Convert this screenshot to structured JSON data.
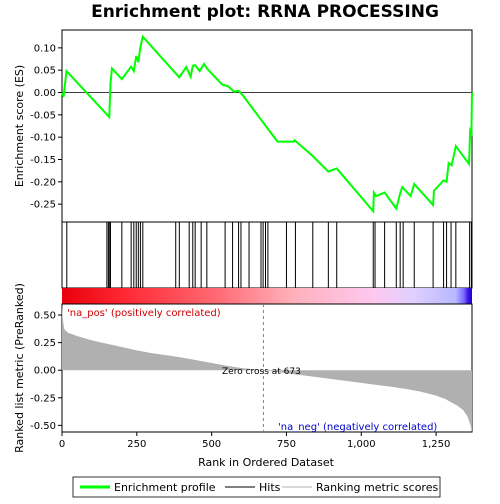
{
  "chart_data": {
    "type": "line",
    "title": "Enrichment plot: RRNA PROCESSING",
    "top_panel": {
      "ylabel": "Enrichment score (ES)",
      "ylim": [
        -0.29,
        0.14
      ],
      "yticks": [
        0.1,
        0.05,
        0.0,
        -0.05,
        -0.1,
        -0.15,
        -0.2,
        -0.25
      ],
      "ytick_labels": [
        "0.10",
        "0.05",
        "0.00",
        "-0.05",
        "-0.10",
        "-0.15",
        "-0.20",
        "-0.25"
      ],
      "series": [
        {
          "name": "Enrichment profile",
          "color": "#00ff00",
          "x": [
            0,
            5,
            15,
            158,
            162,
            167,
            200,
            231,
            240,
            248,
            255,
            262,
            270,
            392,
            415,
            430,
            437,
            445,
            460,
            475,
            484,
            535,
            555,
            575,
            590,
            605,
            720,
            774,
            777,
            834,
            890,
            918,
            1040,
            1042,
            1050,
            1078,
            1117,
            1130,
            1137,
            1165,
            1177,
            1240,
            1243,
            1275,
            1285,
            1292,
            1302,
            1316,
            1360,
            1364,
            1368,
            1370
          ],
          "y": [
            0.0,
            -0.01,
            0.048,
            -0.055,
            0.02,
            0.054,
            0.03,
            0.058,
            0.048,
            0.082,
            0.068,
            0.102,
            0.125,
            0.034,
            0.057,
            0.035,
            0.06,
            0.061,
            0.048,
            0.064,
            0.054,
            0.018,
            0.014,
            0.002,
            0.004,
            -0.007,
            -0.11,
            -0.11,
            -0.107,
            -0.14,
            -0.177,
            -0.17,
            -0.266,
            -0.224,
            -0.232,
            -0.224,
            -0.26,
            -0.226,
            -0.212,
            -0.232,
            -0.205,
            -0.252,
            -0.22,
            -0.197,
            -0.2,
            -0.158,
            -0.163,
            -0.12,
            -0.16,
            -0.085,
            -0.09,
            0.0
          ]
        }
      ]
    },
    "hits": {
      "name": "Hits",
      "positions": [
        16,
        150,
        155,
        158,
        162,
        200,
        231,
        240,
        248,
        255,
        262,
        270,
        380,
        392,
        425,
        437,
        445,
        465,
        484,
        545,
        570,
        590,
        598,
        625,
        665,
        672,
        680,
        688,
        750,
        780,
        838,
        890,
        918,
        1040,
        1046,
        1078,
        1117,
        1130,
        1140,
        1177,
        1240,
        1275,
        1285,
        1300,
        1316,
        1362,
        1368
      ]
    },
    "colorbar": {
      "name": "ranking colour bar",
      "colors": [
        "#e8000b",
        "#ff2b36",
        "#ff6b75",
        "#ffb0ba",
        "#ffc8f0",
        "#ddd0ff",
        "#b8b8ff",
        "#7a6bff",
        "#3a18e8",
        "#2000c8"
      ],
      "stops": [
        0,
        0.16,
        0.38,
        0.56,
        0.76,
        0.86,
        0.96,
        0.98,
        0.99,
        1.0
      ]
    },
    "bottom_panel": {
      "ylabel": "Ranked list metric (PreRanked)",
      "xlabel": "Rank in Ordered Dataset",
      "ylim": [
        -0.56,
        0.6
      ],
      "yticks": [
        0.5,
        0.25,
        0.0,
        -0.25,
        -0.5
      ],
      "ytick_labels": [
        "0.50",
        "0.25",
        "0.00",
        "-0.25",
        "-0.50"
      ],
      "xlim": [
        0,
        1370
      ],
      "xticks": [
        0,
        250,
        500,
        750,
        1000,
        1250
      ],
      "xtick_labels": [
        "0",
        "250",
        "500",
        "750",
        "1,000",
        "1,250"
      ],
      "series": [
        {
          "name": "Ranking metric scores",
          "color": "#b0b0b0",
          "x": [
            0,
            3,
            8,
            20,
            50,
            100,
            150,
            200,
            250,
            300,
            350,
            400,
            450,
            500,
            550,
            600,
            650,
            673,
            700,
            800,
            900,
            1000,
            1100,
            1150,
            1200,
            1250,
            1280,
            1300,
            1320,
            1340,
            1355,
            1365,
            1370
          ],
          "y": [
            0.6,
            0.45,
            0.37,
            0.34,
            0.31,
            0.27,
            0.24,
            0.21,
            0.18,
            0.155,
            0.135,
            0.115,
            0.09,
            0.065,
            0.04,
            0.02,
            0.006,
            0.0,
            -0.01,
            -0.045,
            -0.08,
            -0.115,
            -0.15,
            -0.17,
            -0.195,
            -0.23,
            -0.26,
            -0.29,
            -0.32,
            -0.36,
            -0.42,
            -0.5,
            -0.56
          ]
        }
      ],
      "zero_cross_label": "Zero cross at 673",
      "zero_cross_rank": 673,
      "pos_label": "'na_pos' (positively correlated)",
      "neg_label": "'na_neg' (negatively correlated)"
    },
    "legend": {
      "placement": "bottom",
      "items": [
        {
          "label": "Enrichment profile",
          "color": "#00ff00",
          "kind": "thick-line"
        },
        {
          "label": "Hits",
          "color": "#000000",
          "kind": "line"
        },
        {
          "label": "Ranking metric scores",
          "color": "#b0b0b0",
          "kind": "line"
        }
      ]
    },
    "colors": {
      "pos_label": "#cc0000",
      "neg_label": "#0000cc",
      "zero_line": "#808080"
    }
  }
}
